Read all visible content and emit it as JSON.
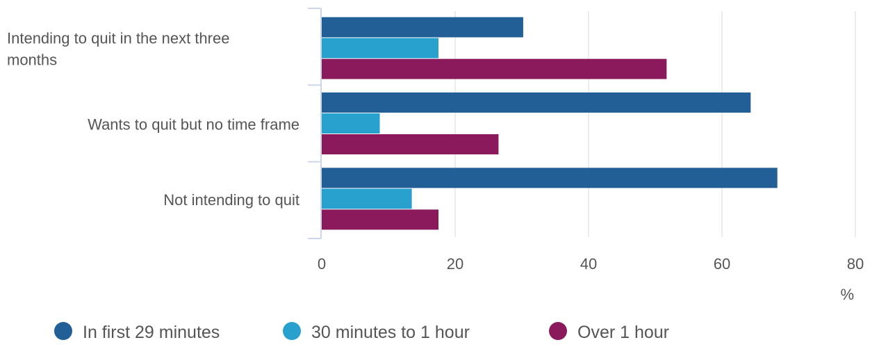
{
  "chart_data": {
    "type": "bar",
    "orientation": "horizontal",
    "categories": [
      [
        "Intending to quit in the next three",
        "months"
      ],
      [
        "Wants to quit but no time frame"
      ],
      [
        "Not intending to quit"
      ]
    ],
    "series": [
      {
        "name": "In first 29 minutes",
        "color": "#215F96",
        "values": [
          30.2,
          64.3,
          68.3
        ]
      },
      {
        "name": "30 minutes to 1 hour",
        "color": "#28A1CE",
        "values": [
          17.5,
          8.7,
          13.5
        ]
      },
      {
        "name": "Over 1 hour",
        "color": "#8A1A5B",
        "values": [
          51.7,
          26.5,
          17.5
        ]
      }
    ],
    "xlim": [
      0,
      80
    ],
    "xticks": [
      0,
      20,
      40,
      60,
      80
    ],
    "xunit": "%",
    "grid": true,
    "legend_position": "bottom-left",
    "colors": {
      "grid": "#e6e6e6",
      "axis": "#ccd6eb",
      "text": "#555555"
    }
  }
}
